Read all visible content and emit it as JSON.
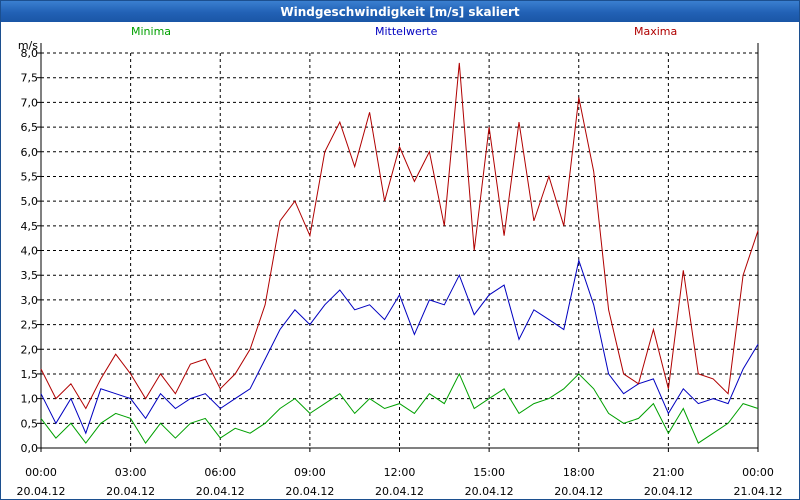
{
  "window": {
    "title": "Windgeschwindigkeit [m/s] skaliert"
  },
  "chart_data": {
    "type": "line",
    "title": "Windgeschwindigkeit [m/s] skaliert",
    "ylabel": "m/s",
    "xlabel": "",
    "ylim": [
      0,
      8
    ],
    "xlim_hours": [
      0,
      24
    ],
    "grid": true,
    "legend_position": "top",
    "colors": {
      "Minima": "#00a000",
      "Mittelwerte": "#0000c0",
      "Maxima": "#b00000"
    },
    "y_ticks": [
      "0,0",
      "0,5",
      "1,0",
      "1,5",
      "2,0",
      "2,5",
      "3,0",
      "3,5",
      "4,0",
      "4,5",
      "5,0",
      "5,5",
      "6,0",
      "6,5",
      "7,0",
      "7,5",
      "8,0"
    ],
    "x_ticks": [
      {
        "time": "00:00",
        "date": "20.04.12"
      },
      {
        "time": "03:00",
        "date": "20.04.12"
      },
      {
        "time": "06:00",
        "date": "20.04.12"
      },
      {
        "time": "09:00",
        "date": "20.04.12"
      },
      {
        "time": "12:00",
        "date": "20.04.12"
      },
      {
        "time": "15:00",
        "date": "20.04.12"
      },
      {
        "time": "18:00",
        "date": "20.04.12"
      },
      {
        "time": "21:00",
        "date": "20.04.12"
      },
      {
        "time": "00:00",
        "date": "21.04.12"
      }
    ],
    "x_hours": [
      0,
      0.5,
      1,
      1.5,
      2,
      2.5,
      3,
      3.5,
      4,
      4.5,
      5,
      5.5,
      6,
      6.5,
      7,
      7.5,
      8,
      8.5,
      9,
      9.5,
      10,
      10.5,
      11,
      11.5,
      12,
      12.5,
      13,
      13.5,
      14,
      14.5,
      15,
      15.5,
      16,
      16.5,
      17,
      17.5,
      18,
      18.5,
      19,
      19.5,
      20,
      20.5,
      21,
      21.5,
      22,
      22.5,
      23,
      23.5,
      24
    ],
    "series": [
      {
        "name": "Minima",
        "values": [
          0.6,
          0.2,
          0.5,
          0.1,
          0.5,
          0.7,
          0.6,
          0.1,
          0.5,
          0.2,
          0.5,
          0.6,
          0.2,
          0.4,
          0.3,
          0.5,
          0.8,
          1.0,
          0.7,
          0.9,
          1.1,
          0.7,
          1.0,
          0.8,
          0.9,
          0.7,
          1.1,
          0.9,
          1.5,
          0.8,
          1.0,
          1.2,
          0.7,
          0.9,
          1.0,
          1.2,
          1.5,
          1.2,
          0.7,
          0.5,
          0.6,
          0.9,
          0.3,
          0.8,
          0.1,
          0.3,
          0.5,
          0.9,
          0.8
        ]
      },
      {
        "name": "Mittelwerte",
        "values": [
          1.1,
          0.5,
          1.0,
          0.3,
          1.2,
          1.1,
          1.0,
          0.6,
          1.1,
          0.8,
          1.0,
          1.1,
          0.8,
          1.0,
          1.2,
          1.8,
          2.4,
          2.8,
          2.5,
          2.9,
          3.2,
          2.8,
          2.9,
          2.6,
          3.1,
          2.3,
          3.0,
          2.9,
          3.5,
          2.7,
          3.1,
          3.3,
          2.2,
          2.8,
          2.6,
          2.4,
          3.8,
          2.9,
          1.5,
          1.1,
          1.3,
          1.4,
          0.7,
          1.2,
          0.9,
          1.0,
          0.9,
          1.6,
          2.1
        ]
      },
      {
        "name": "Maxima",
        "values": [
          1.6,
          1.0,
          1.3,
          0.8,
          1.4,
          1.9,
          1.5,
          1.0,
          1.5,
          1.1,
          1.7,
          1.8,
          1.2,
          1.5,
          2.0,
          2.9,
          4.6,
          5.0,
          4.3,
          6.0,
          6.6,
          5.7,
          6.8,
          5.0,
          6.1,
          5.4,
          6.0,
          4.5,
          7.8,
          4.0,
          6.5,
          4.3,
          6.6,
          4.6,
          5.5,
          4.5,
          7.1,
          5.6,
          2.8,
          1.5,
          1.3,
          2.4,
          1.2,
          3.6,
          1.5,
          1.4,
          1.1,
          3.5,
          4.4
        ]
      }
    ]
  }
}
